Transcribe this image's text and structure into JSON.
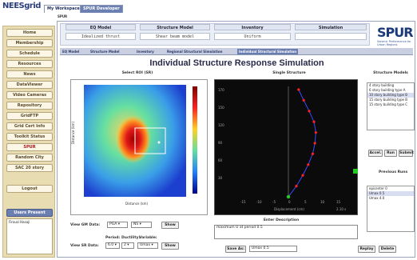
{
  "app": {
    "logo": "NEESgrid",
    "logo_sub": "SPUR",
    "subtitle": "SPUR"
  },
  "tabs": [
    {
      "label": "My Workspace"
    },
    {
      "label": "SPUR Developer"
    }
  ],
  "sidebar": {
    "items": [
      {
        "label": "Home"
      },
      {
        "label": "Membership"
      },
      {
        "label": "Schedule"
      },
      {
        "label": "Resources"
      },
      {
        "label": "News"
      },
      {
        "label": "DataViewer"
      },
      {
        "label": "Video Cameras"
      },
      {
        "label": "Repository"
      },
      {
        "label": "GridFTP"
      },
      {
        "label": "Grid Cert Info"
      },
      {
        "label": "Toolkit Status"
      },
      {
        "label": "SPUR"
      },
      {
        "label": "Random City"
      },
      {
        "label": "SAC 20 story"
      }
    ],
    "logout_label": "Logout",
    "users_present_label": "Users Present",
    "users_list": "Firouzi Hasaji"
  },
  "header": {
    "eq_model_label": "EQ Model",
    "eq_model_value": "Idealized thrust",
    "structure_model_label": "Structure Model",
    "structure_model_value": "Shear beam model",
    "inventory_label": "Inventory",
    "inventory_value": "Uniform",
    "simulation_label": "Simulation",
    "simulation_value": "",
    "brand": "SPUR",
    "brand_sub": "Seismic Performance for Urban Regions"
  },
  "subtabs": [
    {
      "label": "EQ Model"
    },
    {
      "label": "Structure Model"
    },
    {
      "label": "Inventory"
    },
    {
      "label": "Regional Structural Simulation"
    },
    {
      "label": "Individual Structural Simulation"
    }
  ],
  "page_title": "Individual Structure Response Simulation",
  "roi": {
    "heading": "Select ROI (SR)",
    "ylabel": "Distance (km)",
    "xlabel": "Distance (km)"
  },
  "structure_plot": {
    "heading": "Single Structure",
    "xlabel": "Displacement (cm)",
    "time_readout": "2.10 s",
    "y_ticks": [
      "170",
      "150",
      "120",
      "90",
      "60",
      "30"
    ],
    "x_ticks": [
      "-15",
      "-10",
      "-5",
      "0",
      "5",
      "10",
      "15"
    ],
    "profile_cm": [
      0,
      2.5,
      4.5,
      6.2,
      7.6,
      8.3,
      8.6,
      8.0,
      6.5,
      4.8,
      3.2
    ]
  },
  "structure_models": {
    "heading": "Structure Models",
    "items": [
      {
        "label": "4 story building"
      },
      {
        "label": "6 story building type A"
      },
      {
        "label": "10 story building type B"
      },
      {
        "label": "15 story building type B"
      },
      {
        "label": "15 story building type C"
      }
    ],
    "selected_index": 2
  },
  "controls": {
    "accel_label": "Accel.",
    "run_label": "Run",
    "submit_label": "Submit",
    "previous_runs_label": "Previous Runs",
    "previous_runs": [
      {
        "label": "epicenter 0"
      },
      {
        "label": "Umax 0.5"
      },
      {
        "label": "Umax 4.0"
      }
    ],
    "replay_label": "Replay",
    "delete_label": "Delete"
  },
  "gm": {
    "view_label": "View GM Data:",
    "component": "PGA",
    "direction": "NS",
    "show_label": "Show"
  },
  "sr": {
    "period_label": "Period:",
    "ductility_label": "Ductility:",
    "variable_label": "Variable:",
    "view_label": "View SR Data:",
    "period": "6.0",
    "ductility": "2",
    "variable": "Umax",
    "show_label": "Show"
  },
  "description": {
    "heading": "Enter Description",
    "text": "maximum U at period 0.5",
    "save_label": "Save As:",
    "save_value": "Umax 0.5"
  },
  "colors": {
    "accent": "#2a3f7a",
    "sidebar": "#e8dcb2",
    "selected": "#d8ddf1",
    "active_green": "#22cc22"
  }
}
